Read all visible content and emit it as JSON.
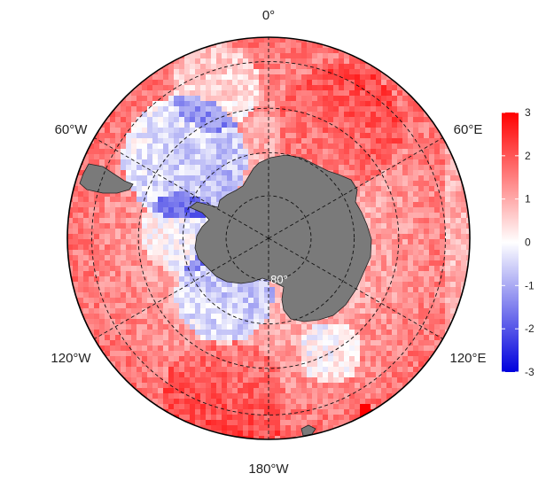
{
  "map": {
    "projection": "south-polar-stereographic",
    "variable_colormap": "blue-white-red diverging",
    "longitude_labels": [
      {
        "id": "lon-0",
        "text": "0°",
        "lon": 0
      },
      {
        "id": "lon-60e",
        "text": "60°E",
        "lon": 60
      },
      {
        "id": "lon-120e",
        "text": "120°E",
        "lon": 120
      },
      {
        "id": "lon-180",
        "text": "180°W",
        "lon": 180
      },
      {
        "id": "lon-120w",
        "text": "120°W",
        "lon": -120
      },
      {
        "id": "lon-60w",
        "text": "60°W",
        "lon": -60
      }
    ],
    "latitude_label": "80°",
    "graticule_latitudes": [
      -80,
      -70,
      -60,
      -50
    ],
    "land_color": "#7a7a7a",
    "colors": {
      "negative": "#0000dd",
      "zero": "#ffffff",
      "positive": "#ff0000"
    }
  },
  "colorbar": {
    "min": -3,
    "max": 3,
    "ticks": [
      "3",
      "2",
      "1",
      "0",
      "-1",
      "-2",
      "-3"
    ]
  }
}
